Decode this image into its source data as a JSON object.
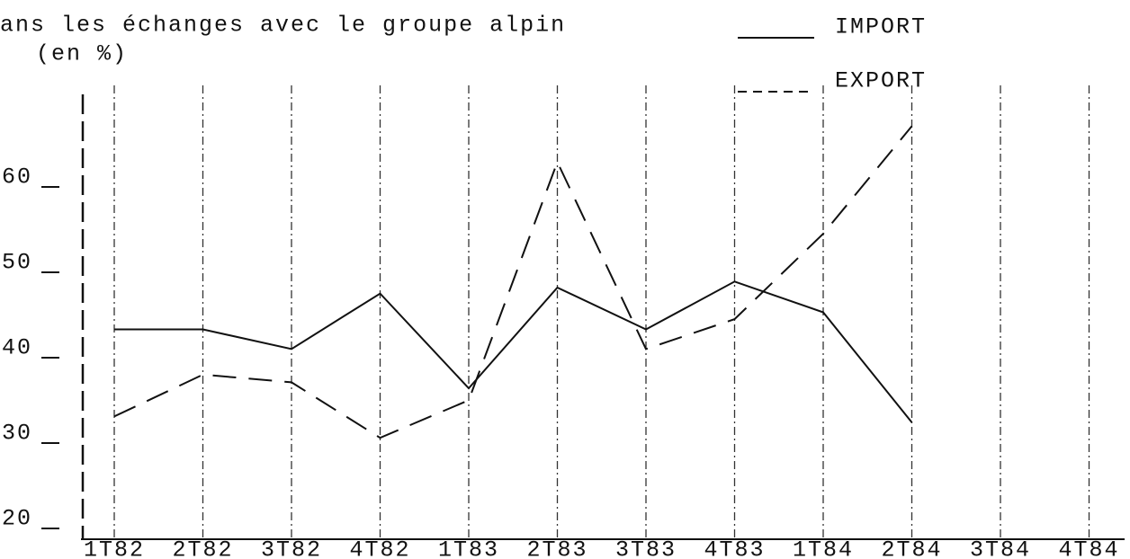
{
  "chart_data": {
    "type": "line",
    "title": "ans les échanges avec le groupe alpin",
    "subtitle": "(en %)",
    "categories": [
      "1T82",
      "2T82",
      "3T82",
      "4T82",
      "1T83",
      "2T83",
      "3T83",
      "4T83",
      "1T84",
      "2T84",
      "3T84",
      "4T84"
    ],
    "series": [
      {
        "name": "IMPORT",
        "color": "#111111",
        "values": [
          43,
          43,
          40.7,
          47.2,
          36.1,
          47.9,
          43,
          48.6,
          45,
          32.1,
          null,
          null
        ]
      },
      {
        "name": "EXPORT",
        "color": "#111111",
        "values": [
          32.8,
          37.7,
          36.8,
          30.3,
          34.7,
          62.6,
          40.7,
          44.2,
          54.2,
          66.8,
          null,
          null
        ]
      }
    ],
    "ylim": [
      20,
      70
    ],
    "yticks": [
      20,
      30,
      40,
      50,
      60
    ],
    "grid": true
  }
}
